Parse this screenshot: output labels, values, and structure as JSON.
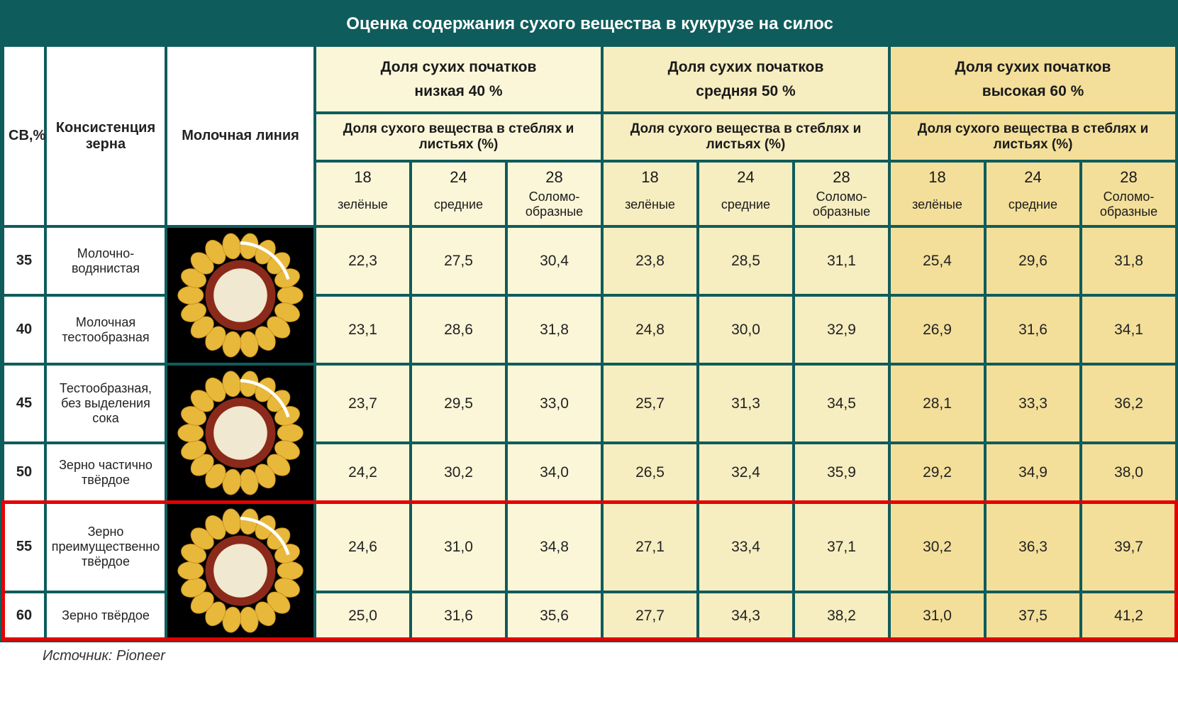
{
  "title": "Оценка содержания сухого вещества в кукурузе на силос",
  "source": "Источник: Pioneer",
  "row_headers": {
    "sv": "СВ,%",
    "consist": "Консистенция зерна",
    "milk": "Молочная линия"
  },
  "sections": {
    "share_label": "Доля сухих початков",
    "low": "низкая 40 %",
    "mid": "средняя 50 %",
    "high": "высокая 60 %",
    "sub": "Доля сухого вещества в стеблях и листьях (%)"
  },
  "col_nums": [
    "18",
    "24",
    "28"
  ],
  "col_txts": [
    "зелёные",
    "средние",
    "Соломо-образные"
  ],
  "rows": [
    {
      "sv": "35",
      "consist": "Молочно-водянистая",
      "low": [
        "22,3",
        "27,5",
        "30,4"
      ],
      "mid": [
        "23,8",
        "28,5",
        "31,1"
      ],
      "high": [
        "25,4",
        "29,6",
        "31,8"
      ]
    },
    {
      "sv": "40",
      "consist": "Молочная тестообразная",
      "low": [
        "23,1",
        "28,6",
        "31,8"
      ],
      "mid": [
        "24,8",
        "30,0",
        "32,9"
      ],
      "high": [
        "26,9",
        "31,6",
        "34,1"
      ]
    },
    {
      "sv": "45",
      "consist": "Тестообразная, без выделения сока",
      "low": [
        "23,7",
        "29,5",
        "33,0"
      ],
      "mid": [
        "25,7",
        "31,3",
        "34,5"
      ],
      "high": [
        "28,1",
        "33,3",
        "36,2"
      ]
    },
    {
      "sv": "50",
      "consist": "Зерно частично твёрдое",
      "low": [
        "24,2",
        "30,2",
        "34,0"
      ],
      "mid": [
        "26,5",
        "32,4",
        "35,9"
      ],
      "high": [
        "29,2",
        "34,9",
        "38,0"
      ]
    },
    {
      "sv": "55",
      "consist": "Зерно преимущественно твёрдое",
      "low": [
        "24,6",
        "31,0",
        "34,8"
      ],
      "mid": [
        "27,1",
        "33,4",
        "37,1"
      ],
      "high": [
        "30,2",
        "36,3",
        "39,7"
      ]
    },
    {
      "sv": "60",
      "consist": "Зерно твёрдое",
      "low": [
        "25,0",
        "31,6",
        "35,6"
      ],
      "mid": [
        "27,7",
        "34,3",
        "38,2"
      ],
      "high": [
        "31,0",
        "37,5",
        "41,2"
      ]
    }
  ],
  "colors": {
    "header_bg": "#0f5c5c",
    "header_fg": "#ffffff",
    "lvl1": "#fbf6d8",
    "lvl2": "#f6edc0",
    "lvl3": "#f3df9a",
    "highlight": "#e30000",
    "cob_kernel": "#e8b83a",
    "cob_kernel_dark": "#c98f1f",
    "cob_center": "#f0e8d0",
    "cob_ring": "#8b2a1a"
  },
  "highlight_rows": [
    4,
    5
  ],
  "font_sizes": {
    "title": 24,
    "section": 21,
    "sub": 19,
    "data": 21,
    "source": 20
  }
}
